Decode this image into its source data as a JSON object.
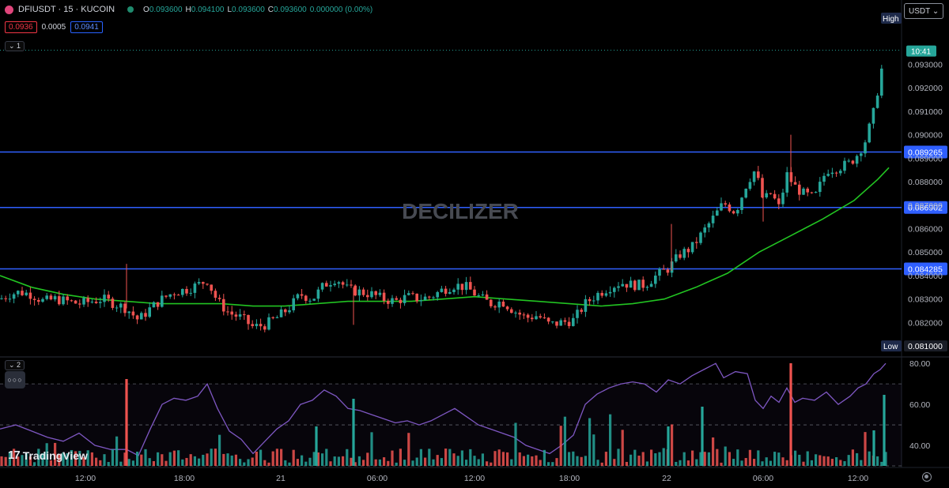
{
  "header": {
    "symbol": "DFIUSDT · 15 · KUCOIN",
    "ohlc": [
      {
        "k": "O",
        "v": "0.093600"
      },
      {
        "k": "H",
        "v": "0.094100"
      },
      {
        "k": "L",
        "v": "0.093600"
      },
      {
        "k": "C",
        "v": "0.093600"
      },
      {
        "k": "",
        "v": "0.000000 (0.00%)"
      }
    ]
  },
  "bidask": {
    "bid": "0.0936",
    "spread": "0.0005",
    "ask": "0.0941"
  },
  "pane1_tag": "⌄ 1",
  "pane2_tag": "⌄ 2",
  "pane_menu": "○○○",
  "currency": "USDT ⌄",
  "watermark": "DECILIZER",
  "branding": {
    "mark": "17",
    "name": "TradingView"
  },
  "colors": {
    "up": "#26a69a",
    "down": "#ef5350",
    "ma": "#22c422",
    "hline": "#2f5fff",
    "rsi": "#7e57c2"
  },
  "chart_data": [
    {
      "type": "candlestick",
      "symbol": "DFIUSDT",
      "interval": "15",
      "exchange": "KUCOIN",
      "ylim": [
        0.0806,
        0.0948
      ],
      "yticks": [
        0.082,
        0.083,
        0.084,
        0.085,
        0.086,
        0.087,
        0.088,
        0.089,
        0.09,
        0.091,
        0.092,
        0.093
      ],
      "ytick_labels": [
        "0.082000",
        "0.083000",
        "0.084000",
        "0.085000",
        "0.086000",
        "0.087000",
        "0.088000",
        "0.089000",
        "0.090000",
        "0.091000",
        "0.092000",
        "0.093000"
      ],
      "xticks": [
        "12:00",
        "18:00",
        "21",
        "06:00",
        "12:00",
        "18:00",
        "22",
        "06:00",
        "12:00"
      ],
      "horizontal_levels": [
        {
          "label": "0.089265",
          "value": 0.089265
        },
        {
          "label": "0.086902",
          "value": 0.086902
        },
        {
          "label": "0.084285",
          "value": 0.084285
        }
      ],
      "high_label": "High",
      "low_label": "Low",
      "low_value": "0.081000",
      "last_price_label": "10:41",
      "last_price": 0.0936,
      "price_path": [
        [
          0,
          0.083
        ],
        [
          12,
          0.0832
        ],
        [
          25,
          0.0833
        ],
        [
          40,
          0.0832
        ],
        [
          55,
          0.0829
        ],
        [
          70,
          0.083
        ],
        [
          85,
          0.0829
        ],
        [
          100,
          0.0828
        ],
        [
          115,
          0.0829
        ],
        [
          130,
          0.083
        ],
        [
          145,
          0.0828
        ],
        [
          160,
          0.0826
        ],
        [
          175,
          0.0821
        ],
        [
          190,
          0.0826
        ],
        [
          205,
          0.083
        ],
        [
          220,
          0.0833
        ],
        [
          235,
          0.0834
        ],
        [
          250,
          0.0836
        ],
        [
          262,
          0.0838
        ],
        [
          275,
          0.0829
        ],
        [
          290,
          0.0824
        ],
        [
          305,
          0.0822
        ],
        [
          320,
          0.0818
        ],
        [
          335,
          0.0819
        ],
        [
          350,
          0.0822
        ],
        [
          365,
          0.0826
        ],
        [
          380,
          0.0832
        ],
        [
          395,
          0.083
        ],
        [
          410,
          0.0836
        ],
        [
          425,
          0.0839
        ],
        [
          440,
          0.0834
        ],
        [
          455,
          0.0833
        ],
        [
          470,
          0.0832
        ],
        [
          485,
          0.083
        ],
        [
          500,
          0.0829
        ],
        [
          515,
          0.0831
        ],
        [
          530,
          0.083
        ],
        [
          545,
          0.0831
        ],
        [
          560,
          0.0834
        ],
        [
          575,
          0.0836
        ],
        [
          590,
          0.0835
        ],
        [
          605,
          0.0831
        ],
        [
          620,
          0.0828
        ],
        [
          635,
          0.0829
        ],
        [
          650,
          0.0825
        ],
        [
          665,
          0.0822
        ],
        [
          680,
          0.0823
        ],
        [
          695,
          0.0819
        ],
        [
          710,
          0.082
        ],
        [
          725,
          0.0821
        ],
        [
          740,
          0.0828
        ],
        [
          755,
          0.0832
        ],
        [
          770,
          0.0835
        ],
        [
          785,
          0.0837
        ],
        [
          800,
          0.0836
        ],
        [
          815,
          0.0836
        ],
        [
          830,
          0.084
        ],
        [
          845,
          0.0843
        ],
        [
          860,
          0.0849
        ],
        [
          875,
          0.0852
        ],
        [
          890,
          0.0859
        ],
        [
          905,
          0.0866
        ],
        [
          915,
          0.0871
        ],
        [
          930,
          0.0867
        ],
        [
          945,
          0.088
        ],
        [
          955,
          0.0885
        ],
        [
          965,
          0.0872
        ],
        [
          975,
          0.0875
        ],
        [
          985,
          0.0869
        ],
        [
          995,
          0.0883
        ],
        [
          1005,
          0.0878
        ],
        [
          1015,
          0.0875
        ],
        [
          1030,
          0.0873
        ],
        [
          1045,
          0.0885
        ],
        [
          1060,
          0.0886
        ],
        [
          1075,
          0.0888
        ],
        [
          1085,
          0.0892
        ],
        [
          1095,
          0.0898
        ],
        [
          1105,
          0.091
        ],
        [
          1113,
          0.0925
        ],
        [
          1120,
          0.0936
        ]
      ],
      "moving_average": [
        [
          0,
          0.084
        ],
        [
          40,
          0.0835
        ],
        [
          80,
          0.0832
        ],
        [
          120,
          0.083
        ],
        [
          160,
          0.0829
        ],
        [
          200,
          0.0828
        ],
        [
          240,
          0.0828
        ],
        [
          280,
          0.0828
        ],
        [
          320,
          0.0827
        ],
        [
          360,
          0.0827
        ],
        [
          400,
          0.0828
        ],
        [
          440,
          0.0829
        ],
        [
          480,
          0.0829
        ],
        [
          520,
          0.0829
        ],
        [
          560,
          0.083
        ],
        [
          600,
          0.0831
        ],
        [
          640,
          0.083
        ],
        [
          680,
          0.0829
        ],
        [
          720,
          0.0828
        ],
        [
          760,
          0.0827
        ],
        [
          800,
          0.0828
        ],
        [
          840,
          0.083
        ],
        [
          880,
          0.0835
        ],
        [
          920,
          0.0841
        ],
        [
          960,
          0.085
        ],
        [
          1000,
          0.0857
        ],
        [
          1040,
          0.0864
        ],
        [
          1080,
          0.0872
        ],
        [
          1110,
          0.0881
        ],
        [
          1124,
          0.0886
        ]
      ]
    },
    {
      "type": "line",
      "name": "RSI",
      "ylim": [
        30,
        82
      ],
      "yticks": [
        40,
        60,
        80
      ],
      "ytick_labels": [
        "40.00",
        "60.00",
        "80.00"
      ],
      "bands": [
        30,
        50,
        70
      ],
      "rsi_path": [
        [
          0,
          48
        ],
        [
          20,
          50
        ],
        [
          40,
          47
        ],
        [
          60,
          44
        ],
        [
          80,
          42
        ],
        [
          100,
          46
        ],
        [
          120,
          40
        ],
        [
          140,
          38
        ],
        [
          160,
          38
        ],
        [
          175,
          35
        ],
        [
          190,
          48
        ],
        [
          205,
          60
        ],
        [
          220,
          63
        ],
        [
          235,
          62
        ],
        [
          250,
          64
        ],
        [
          262,
          70
        ],
        [
          275,
          58
        ],
        [
          290,
          47
        ],
        [
          305,
          43
        ],
        [
          320,
          36
        ],
        [
          335,
          42
        ],
        [
          350,
          48
        ],
        [
          365,
          52
        ],
        [
          380,
          60
        ],
        [
          395,
          62
        ],
        [
          410,
          67
        ],
        [
          425,
          64
        ],
        [
          440,
          58
        ],
        [
          455,
          57
        ],
        [
          470,
          55
        ],
        [
          485,
          53
        ],
        [
          500,
          51
        ],
        [
          515,
          52
        ],
        [
          530,
          50
        ],
        [
          545,
          52
        ],
        [
          560,
          55
        ],
        [
          575,
          58
        ],
        [
          590,
          54
        ],
        [
          605,
          50
        ],
        [
          620,
          48
        ],
        [
          635,
          46
        ],
        [
          650,
          44
        ],
        [
          665,
          40
        ],
        [
          680,
          38
        ],
        [
          695,
          36
        ],
        [
          710,
          40
        ],
        [
          725,
          45
        ],
        [
          740,
          60
        ],
        [
          755,
          65
        ],
        [
          770,
          68
        ],
        [
          785,
          70
        ],
        [
          800,
          71
        ],
        [
          815,
          70
        ],
        [
          830,
          66
        ],
        [
          845,
          72
        ],
        [
          860,
          70
        ],
        [
          875,
          74
        ],
        [
          890,
          77
        ],
        [
          905,
          80
        ],
        [
          915,
          73
        ],
        [
          930,
          76
        ],
        [
          945,
          75
        ],
        [
          955,
          62
        ],
        [
          965,
          58
        ],
        [
          975,
          64
        ],
        [
          985,
          61
        ],
        [
          995,
          68
        ],
        [
          1005,
          61
        ],
        [
          1015,
          63
        ],
        [
          1030,
          62
        ],
        [
          1045,
          66
        ],
        [
          1060,
          60
        ],
        [
          1075,
          64
        ],
        [
          1085,
          68
        ],
        [
          1095,
          70
        ],
        [
          1105,
          75
        ],
        [
          1113,
          77
        ],
        [
          1120,
          80
        ]
      ],
      "volume_bars": "approximate histogram (teal/red) under RSI"
    }
  ]
}
